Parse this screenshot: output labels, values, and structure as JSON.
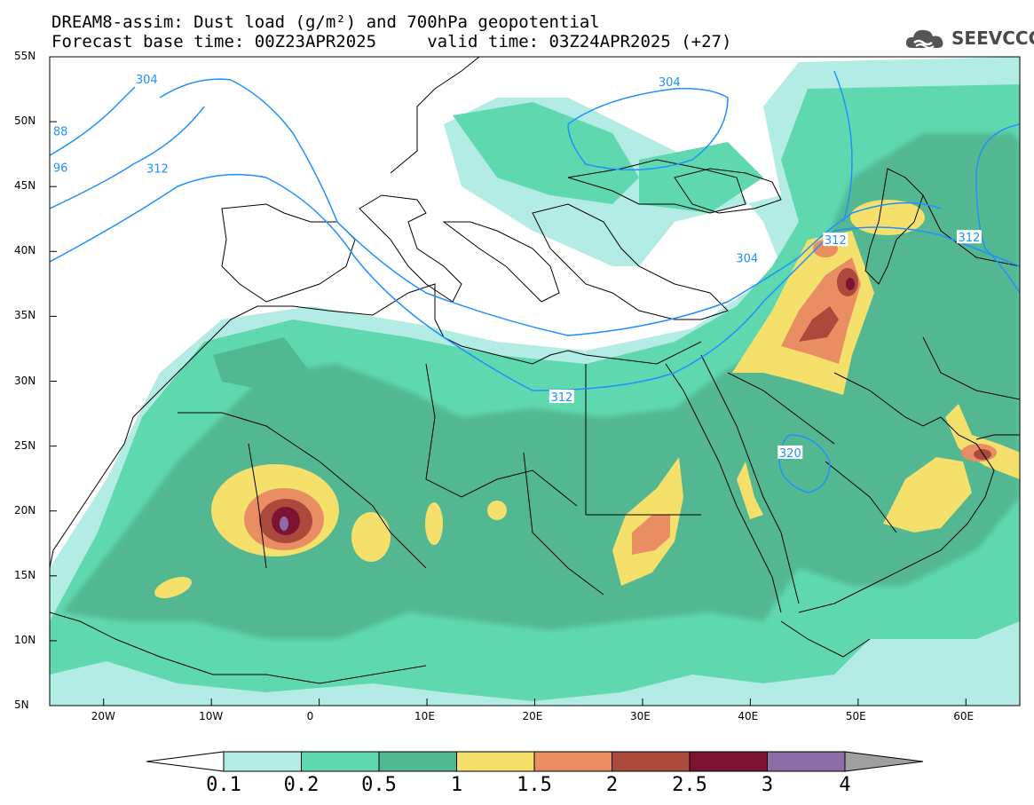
{
  "header": {
    "title_line1": "DREAM8-assim: Dust load (g/m²) and 700hPa geopotential",
    "title_line2": "Forecast base time: 00Z23APR2025     valid time: 03Z24APR2025 (+27)",
    "logo_text": "SEEVCCC",
    "logo_icon": "cloud-logo-icon"
  },
  "map": {
    "lon_range": [
      -25,
      65
    ],
    "lat_range": [
      5,
      55
    ],
    "lon_ticks": [
      {
        "value": -20,
        "label": "20W"
      },
      {
        "value": -10,
        "label": "10W"
      },
      {
        "value": 0,
        "label": "0"
      },
      {
        "value": 10,
        "label": "10E"
      },
      {
        "value": 20,
        "label": "20E"
      },
      {
        "value": 30,
        "label": "30E"
      },
      {
        "value": 40,
        "label": "40E"
      },
      {
        "value": 50,
        "label": "50E"
      },
      {
        "value": 60,
        "label": "60E"
      }
    ],
    "lat_ticks": [
      {
        "value": 55,
        "label": "55N"
      },
      {
        "value": 50,
        "label": "50N"
      },
      {
        "value": 45,
        "label": "45N"
      },
      {
        "value": 40,
        "label": "40N"
      },
      {
        "value": 35,
        "label": "35N"
      },
      {
        "value": 30,
        "label": "30N"
      },
      {
        "value": 25,
        "label": "25N"
      },
      {
        "value": 20,
        "label": "20N"
      },
      {
        "value": 15,
        "label": "15N"
      },
      {
        "value": 10,
        "label": "10N"
      },
      {
        "value": 5,
        "label": "5N"
      }
    ],
    "contour_color": "#1e90ff",
    "contour_labels": [
      {
        "text": "304",
        "lon": -16,
        "lat": 53.3
      },
      {
        "text": "304",
        "lon": 32.5,
        "lat": 53.1
      },
      {
        "text": "312",
        "lon": -15,
        "lat": 46.4
      },
      {
        "text": "88",
        "lon": -24,
        "lat": 49.3
      },
      {
        "text": "96",
        "lon": -24,
        "lat": 46.5
      },
      {
        "text": "304",
        "lon": 39.7,
        "lat": 39.5
      },
      {
        "text": "312",
        "lon": 47.9,
        "lat": 40.9
      },
      {
        "text": "312",
        "lon": 60.3,
        "lat": 41.1
      },
      {
        "text": "312",
        "lon": 22.5,
        "lat": 28.8
      },
      {
        "text": "320",
        "lon": 43.7,
        "lat": 24.5
      }
    ]
  },
  "legend": {
    "colors": [
      "#ffffff",
      "#b3ece4",
      "#5fd8b0",
      "#52b892",
      "#f5e06c",
      "#e98e62",
      "#a94a3c",
      "#7b1332",
      "#8e6ca5",
      "#9f9f9f"
    ],
    "labels": [
      "0.1",
      "0.2",
      "0.5",
      "1",
      "1.5",
      "2",
      "2.5",
      "3",
      "4"
    ]
  }
}
